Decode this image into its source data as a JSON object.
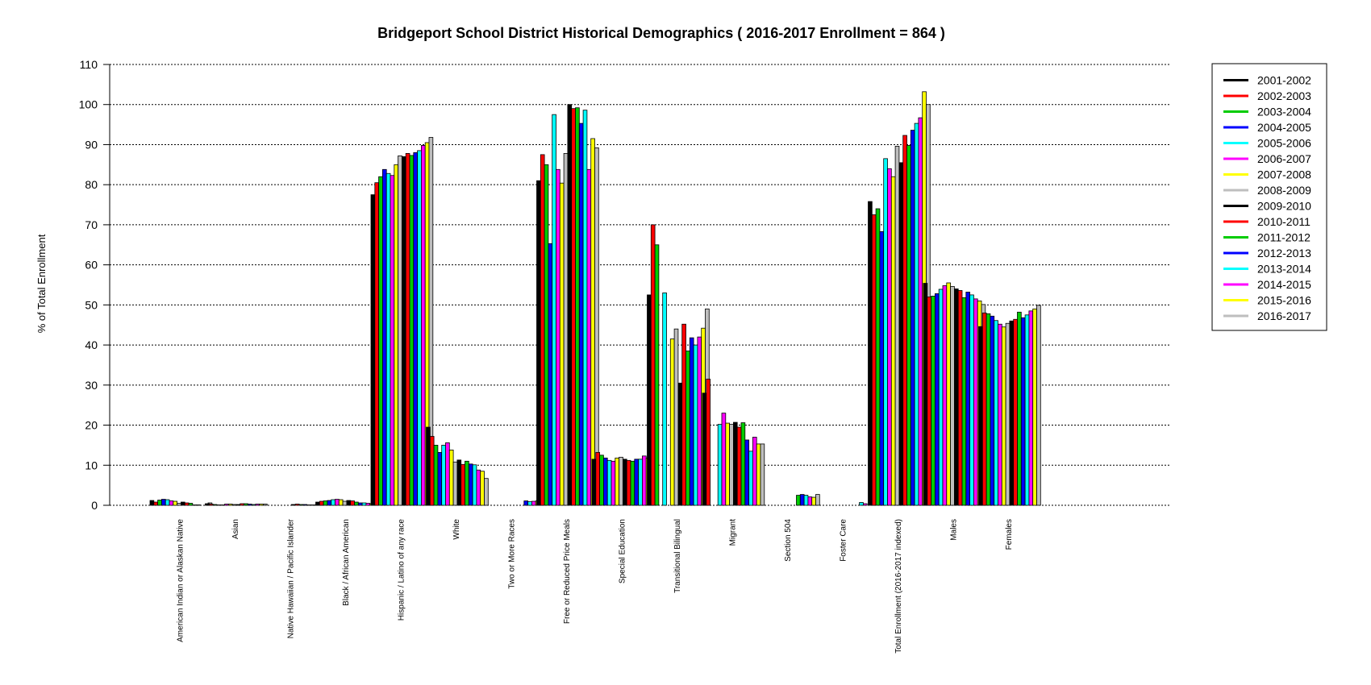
{
  "chart_data": {
    "type": "bar",
    "title": "Bridgeport School District Historical Demographics  ( 2016-2017 Enrollment =  864 )",
    "xlabel": "",
    "ylabel": "% of Total Enrollment",
    "ylim": [
      0,
      110
    ],
    "yticks": [
      0,
      10,
      20,
      30,
      40,
      50,
      60,
      70,
      80,
      90,
      100,
      110
    ],
    "grid": "horizontal dotted",
    "legend_position": "right",
    "categories": [
      "American Indian or Alaskan Native",
      "Asian",
      "Native Hawaiian / Pacific Islander",
      "Black / African American",
      "Hispanic / Latino of any race",
      "White",
      "Two or More Races",
      "Free or Reduced Price Meals",
      "Special Education",
      "Transitional Bilingual",
      "Migrant",
      "Section 504",
      "Foster Care",
      "Total Enrollment (2016-2017 indexed)",
      "Males",
      "Females"
    ],
    "series": [
      {
        "name": "2001-2002",
        "color": "#000000",
        "values": [
          1.2,
          0.4,
          0.0,
          0.8,
          77.5,
          19.5,
          0.0,
          81.0,
          11.5,
          52.5,
          28.0,
          0.0,
          0.0,
          75.8,
          55.4,
          44.6
        ]
      },
      {
        "name": "2002-2003",
        "color": "#ff0000",
        "values": [
          0.8,
          0.3,
          0.0,
          1.0,
          80.5,
          17.2,
          0.0,
          87.5,
          13.2,
          70.0,
          31.5,
          0.0,
          0.0,
          72.5,
          52.0,
          48.0
        ]
      },
      {
        "name": "2003-2004",
        "color": "#00cc00",
        "values": [
          1.3,
          0.2,
          0.0,
          1.1,
          82.0,
          15.0,
          0.0,
          85.0,
          12.5,
          65.0,
          0.0,
          0.0,
          0.0,
          74.0,
          52.2,
          47.8
        ]
      },
      {
        "name": "2004-2005",
        "color": "#0000ff",
        "values": [
          1.5,
          0.1,
          0.0,
          1.2,
          83.8,
          13.2,
          0.0,
          65.3,
          11.8,
          0.0,
          0.0,
          0.0,
          0.0,
          68.3,
          52.8,
          47.2
        ]
      },
      {
        "name": "2005-2006",
        "color": "#00ffff",
        "values": [
          1.4,
          0.1,
          0.0,
          1.4,
          82.8,
          15.0,
          0.0,
          97.5,
          11.2,
          53.0,
          20.2,
          0.0,
          0.0,
          86.5,
          53.9,
          46.1
        ]
      },
      {
        "name": "2006-2007",
        "color": "#ff00ff",
        "values": [
          1.1,
          0.3,
          0.0,
          1.5,
          82.3,
          15.6,
          0.0,
          83.8,
          11.0,
          0.0,
          23.0,
          0.0,
          0.0,
          84.0,
          54.8,
          45.2
        ]
      },
      {
        "name": "2007-2008",
        "color": "#ffff00",
        "values": [
          1.0,
          0.3,
          0.0,
          1.4,
          85.0,
          13.8,
          0.0,
          80.4,
          11.8,
          41.5,
          20.5,
          0.0,
          0.0,
          82.0,
          55.5,
          44.5
        ]
      },
      {
        "name": "2008-2009",
        "color": "#bebebe",
        "values": [
          0.5,
          0.2,
          0.0,
          1.0,
          87.2,
          10.8,
          0.0,
          87.8,
          12.0,
          44.0,
          20.2,
          0.0,
          0.0,
          89.6,
          54.6,
          45.4
        ]
      },
      {
        "name": "2009-2010",
        "color": "#000000",
        "values": [
          0.8,
          0.2,
          0.2,
          1.2,
          87.0,
          11.3,
          0.0,
          100.0,
          11.5,
          30.5,
          20.7,
          0.0,
          0.0,
          85.5,
          54.0,
          46.0
        ]
      },
      {
        "name": "2010-2011",
        "color": "#ff0000",
        "values": [
          0.6,
          0.4,
          0.3,
          1.1,
          87.8,
          10.2,
          0.0,
          99.0,
          11.2,
          45.2,
          19.5,
          0.0,
          0.0,
          92.3,
          53.6,
          46.4
        ]
      },
      {
        "name": "2011-2012",
        "color": "#00cc00",
        "values": [
          0.5,
          0.4,
          0.2,
          0.8,
          87.3,
          11.0,
          0.0,
          99.2,
          11.0,
          38.5,
          20.6,
          2.5,
          0.0,
          89.8,
          51.8,
          48.2
        ]
      },
      {
        "name": "2012-2013",
        "color": "#0000ff",
        "values": [
          0.1,
          0.3,
          0.2,
          0.6,
          88.0,
          10.3,
          1.1,
          95.3,
          11.5,
          41.8,
          16.3,
          2.7,
          0.0,
          93.6,
          53.2,
          46.8
        ]
      },
      {
        "name": "2013-2014",
        "color": "#00ffff",
        "values": [
          0.1,
          0.2,
          0.1,
          0.6,
          88.5,
          10.1,
          0.9,
          98.6,
          11.5,
          40.0,
          13.5,
          2.5,
          0.7,
          95.3,
          52.5,
          47.5
        ]
      },
      {
        "name": "2014-2015",
        "color": "#ff00ff",
        "values": [
          0.0,
          0.3,
          0.1,
          0.5,
          89.8,
          8.8,
          1.0,
          83.8,
          12.3,
          42.0,
          17.0,
          2.1,
          0.4,
          96.7,
          51.5,
          48.5
        ]
      },
      {
        "name": "2015-2016",
        "color": "#ffff00",
        "values": [
          0.0,
          0.3,
          0.1,
          0.4,
          90.5,
          8.5,
          1.1,
          91.5,
          11.8,
          44.2,
          15.3,
          2.0,
          0.0,
          103.2,
          51.0,
          49.0
        ]
      },
      {
        "name": "2016-2017",
        "color": "#bebebe",
        "values": [
          0.6,
          0.3,
          0.3,
          0.4,
          91.8,
          6.7,
          0.8,
          89.2,
          11.2,
          49.0,
          15.3,
          2.7,
          0.3,
          100.0,
          50.1,
          49.9
        ]
      }
    ]
  }
}
